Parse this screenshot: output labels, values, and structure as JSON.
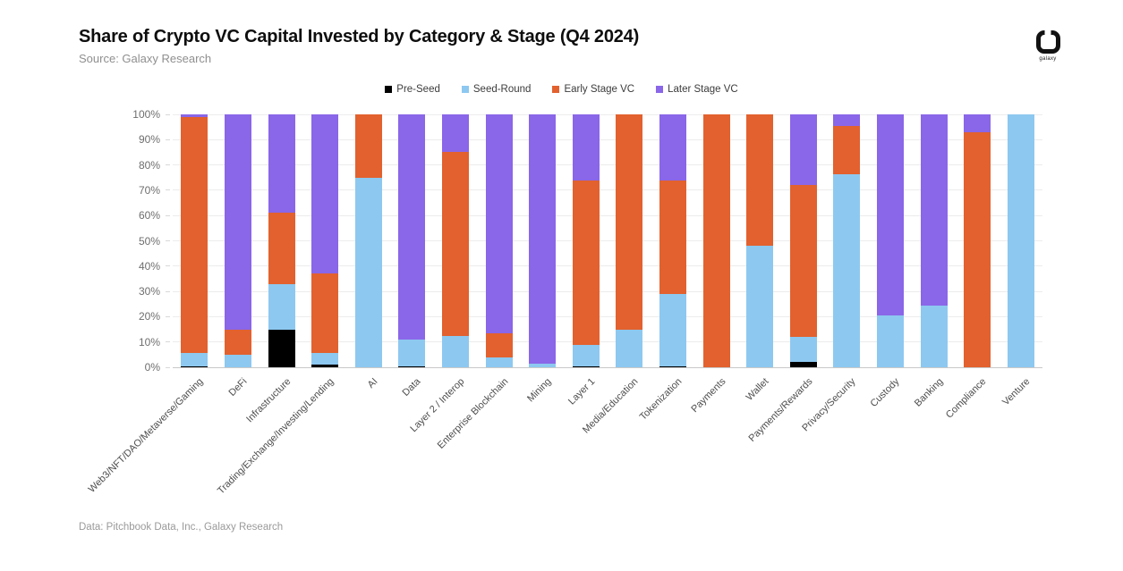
{
  "header": {
    "title": "Share of Crypto VC Capital Invested by Category & Stage (Q4 2024)",
    "source": "Source: Galaxy Research"
  },
  "logo": {
    "label": "galaxy"
  },
  "footer": {
    "note": "Data: Pitchbook Data, Inc., Galaxy Research"
  },
  "colors": {
    "pre_seed": "#000000",
    "seed_round": "#8DC8F0",
    "early_stage": "#E2612E",
    "later_stage": "#8A66E8",
    "gridline": "#ececec",
    "baseline": "#c9c9c9"
  },
  "chart_data": {
    "type": "bar",
    "stacked": true,
    "units": "percent",
    "title": "Share of Crypto VC Capital Invested by Category & Stage (Q4 2024)",
    "xlabel": "",
    "ylabel": "",
    "ylim": [
      0,
      100
    ],
    "grid": true,
    "legend_position": "top",
    "yticks": [
      "0%",
      "10%",
      "20%",
      "30%",
      "40%",
      "50%",
      "60%",
      "70%",
      "80%",
      "90%",
      "100%"
    ],
    "categories": [
      "Web3/NFT/DAO/Metaverse/Gaming",
      "DeFi",
      "Infrastructure",
      "Trading/Exchange/Investing/Lending",
      "AI",
      "Data",
      "Layer 2 / Interop",
      "Enterprise Blockchain",
      "Mining",
      "Layer 1",
      "Media/Education",
      "Tokenization",
      "Payments",
      "Wallet",
      "Payments/Rewards",
      "Privacy/Security",
      "Custody",
      "Banking",
      "Compliance",
      "Venture"
    ],
    "series": [
      {
        "name": "Pre-Seed",
        "color": "#000000",
        "values": [
          0.5,
          0,
          15,
          1,
          0,
          0.5,
          0,
          0,
          0,
          0.5,
          0,
          0.5,
          0,
          0,
          2,
          0,
          0,
          0,
          0,
          0
        ]
      },
      {
        "name": "Seed-Round",
        "color": "#8DC8F0",
        "values": [
          5,
          5,
          18,
          4.5,
          75,
          10.5,
          12.5,
          4,
          1.5,
          8.5,
          15,
          28.5,
          0,
          48,
          10,
          76.5,
          20.5,
          24.5,
          0,
          100
        ]
      },
      {
        "name": "Early Stage VC",
        "color": "#E2612E",
        "values": [
          93.5,
          10,
          28,
          31.5,
          25,
          0,
          72.5,
          9.5,
          0,
          65,
          85,
          45,
          100,
          52,
          60,
          19,
          0,
          0,
          93,
          0
        ]
      },
      {
        "name": "Later Stage VC",
        "color": "#8A66E8",
        "values": [
          1,
          85,
          39,
          63,
          0,
          89,
          15,
          86.5,
          98.5,
          26,
          0,
          26,
          0,
          0,
          28,
          4.5,
          79.5,
          75.5,
          7,
          0
        ]
      }
    ]
  }
}
